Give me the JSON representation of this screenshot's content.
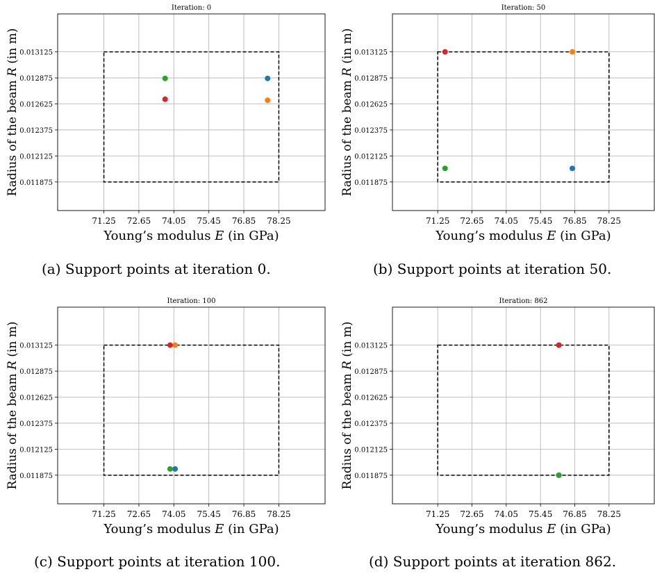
{
  "captions": [
    "(a) Support points at iteration 0.",
    "(b) Support points at iteration 50.",
    "(c) Support points at iteration 100.",
    "(d) Support points at iteration 862."
  ],
  "chart_data": [
    {
      "type": "scatter",
      "title": "Iteration: 0",
      "xlabel": "Young’s modulus E (in GPa)",
      "ylabel": "Radius of the beam R (in m)",
      "xlim": [
        69.4,
        80.1
      ],
      "ylim": [
        0.0116,
        0.01349
      ],
      "xticks": [
        "71.25",
        "72.65",
        "74.05",
        "75.45",
        "76.85",
        "78.25"
      ],
      "yticks": [
        "0.011875",
        "0.012125",
        "0.012375",
        "0.012625",
        "0.012875",
        "0.013125"
      ],
      "grid": true,
      "bounds_box": {
        "x": [
          71.25,
          78.25
        ],
        "y": [
          0.011875,
          0.013125
        ],
        "style": "dashed"
      },
      "points": [
        {
          "x": 77.8,
          "y": 0.01287,
          "color": "#1f77b4"
        },
        {
          "x": 77.8,
          "y": 0.01266,
          "color": "#ff7f0e"
        },
        {
          "x": 73.7,
          "y": 0.01287,
          "color": "#2ca02c"
        },
        {
          "x": 73.7,
          "y": 0.01267,
          "color": "#d62728"
        }
      ]
    },
    {
      "type": "scatter",
      "title": "Iteration: 50",
      "xlabel": "Young’s modulus E (in GPa)",
      "ylabel": "Radius of the beam R (in m)",
      "xlim": [
        69.4,
        80.1
      ],
      "ylim": [
        0.0116,
        0.01349
      ],
      "xticks": [
        "71.25",
        "72.65",
        "74.05",
        "75.45",
        "76.85",
        "78.25"
      ],
      "yticks": [
        "0.011875",
        "0.012125",
        "0.012375",
        "0.012625",
        "0.012875",
        "0.013125"
      ],
      "grid": true,
      "bounds_box": {
        "x": [
          71.25,
          78.25
        ],
        "y": [
          0.011875,
          0.013125
        ],
        "style": "dashed"
      },
      "points": [
        {
          "x": 76.75,
          "y": 0.012005,
          "color": "#1f77b4"
        },
        {
          "x": 76.75,
          "y": 0.013125,
          "color": "#ff7f0e"
        },
        {
          "x": 71.55,
          "y": 0.012005,
          "color": "#2ca02c"
        },
        {
          "x": 71.55,
          "y": 0.013125,
          "color": "#d62728"
        }
      ]
    },
    {
      "type": "scatter",
      "title": "Iteration: 100",
      "xlabel": "Young’s modulus E (in GPa)",
      "ylabel": "Radius of the beam R (in m)",
      "xlim": [
        69.4,
        80.1
      ],
      "ylim": [
        0.0116,
        0.01349
      ],
      "xticks": [
        "71.25",
        "72.65",
        "74.05",
        "75.45",
        "76.85",
        "78.25"
      ],
      "yticks": [
        "0.011875",
        "0.012125",
        "0.012375",
        "0.012625",
        "0.012875",
        "0.013125"
      ],
      "grid": true,
      "bounds_box": {
        "x": [
          71.25,
          78.25
        ],
        "y": [
          0.011875,
          0.013125
        ],
        "style": "dashed"
      },
      "points": [
        {
          "x": 74.1,
          "y": 0.011935,
          "color": "#1f77b4"
        },
        {
          "x": 74.1,
          "y": 0.013125,
          "color": "#ff7f0e"
        },
        {
          "x": 73.9,
          "y": 0.011935,
          "color": "#2ca02c"
        },
        {
          "x": 73.9,
          "y": 0.013125,
          "color": "#d62728"
        }
      ]
    },
    {
      "type": "scatter",
      "title": "Iteration: 862",
      "xlabel": "Young’s modulus E (in GPa)",
      "ylabel": "Radius of the beam R (in m)",
      "xlim": [
        69.4,
        80.1
      ],
      "ylim": [
        0.0116,
        0.01349
      ],
      "xticks": [
        "71.25",
        "72.65",
        "74.05",
        "75.45",
        "76.85",
        "78.25"
      ],
      "yticks": [
        "0.011875",
        "0.012125",
        "0.012375",
        "0.012625",
        "0.012875",
        "0.013125"
      ],
      "grid": true,
      "bounds_box": {
        "x": [
          71.25,
          78.25
        ],
        "y": [
          0.011875,
          0.013125
        ],
        "style": "dashed"
      },
      "points": [
        {
          "x": 76.2,
          "y": 0.011875,
          "color": "#1f77b4"
        },
        {
          "x": 76.2,
          "y": 0.013125,
          "color": "#ff7f0e"
        },
        {
          "x": 76.2,
          "y": 0.011875,
          "color": "#2ca02c"
        },
        {
          "x": 76.2,
          "y": 0.013125,
          "color": "#d62728"
        }
      ]
    }
  ]
}
